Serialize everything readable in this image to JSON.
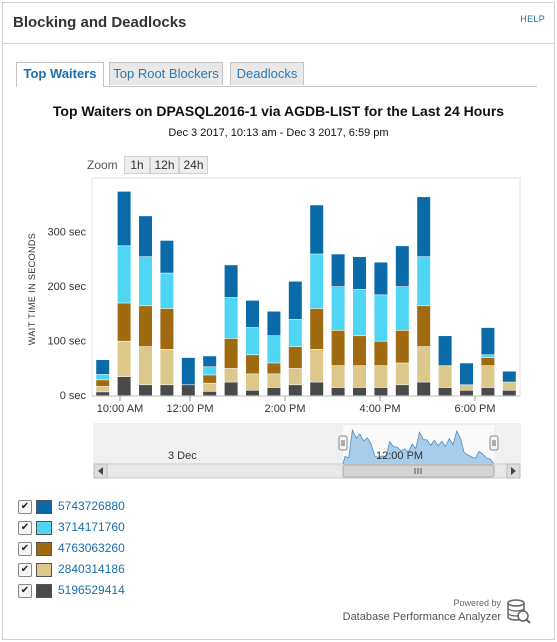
{
  "header": {
    "title": "Blocking and Deadlocks",
    "help": "HELP"
  },
  "tabs": [
    {
      "label": "Top Waiters",
      "active": true
    },
    {
      "label": "Top Root Blockers",
      "active": false
    },
    {
      "label": "Deadlocks",
      "active": false
    }
  ],
  "zoom": {
    "label": "Zoom",
    "buttons": [
      "1h",
      "12h",
      "24h"
    ]
  },
  "colors": [
    "#0b6aa8",
    "#4ed6f4",
    "#a06b10",
    "#dcc88a",
    "#4a4a4a"
  ],
  "chart_data": {
    "type": "bar",
    "stacked": true,
    "title": "Top Waiters on DPASQL2016-1 via AGDB-LIST for the Last 24 Hours",
    "subtitle": "Dec 3 2017, 10:13 am - Dec 3 2017, 6:59 pm",
    "ylabel": "WAIT TIME IN SECONDS",
    "ylim": [
      0,
      400
    ],
    "yticks": [
      {
        "v": 0,
        "label": "0 sec"
      },
      {
        "v": 100,
        "label": "100 sec"
      },
      {
        "v": 200,
        "label": "200 sec"
      },
      {
        "v": 300,
        "label": "300 sec"
      }
    ],
    "xtick_labels": [
      "10:00 AM",
      "12:00 PM",
      "2:00 PM",
      "4:00 PM",
      "6:00 PM"
    ],
    "categories": [
      "10:13 AM",
      "10:40 AM",
      "11:06 AM",
      "11:33 AM",
      "12:00 PM",
      "12:26 PM",
      "12:53 PM",
      "1:20 PM",
      "1:46 PM",
      "2:13 PM",
      "2:40 PM",
      "3:06 PM",
      "3:33 PM",
      "4:00 PM",
      "4:26 PM",
      "4:53 PM",
      "5:20 PM",
      "5:46 PM",
      "6:13 PM",
      "6:40 PM"
    ],
    "series": [
      {
        "name": "5743726880",
        "values": [
          27,
          100,
          75,
          60,
          50,
          20,
          60,
          50,
          45,
          70,
          90,
          60,
          60,
          60,
          75,
          110,
          55,
          40,
          50,
          20
        ]
      },
      {
        "name": "3714171760",
        "values": [
          10,
          105,
          90,
          65,
          0,
          15,
          75,
          50,
          50,
          50,
          100,
          80,
          85,
          85,
          80,
          90,
          0,
          0,
          5,
          0
        ]
      },
      {
        "name": "4763063260",
        "values": [
          12,
          70,
          75,
          75,
          0,
          15,
          55,
          35,
          20,
          40,
          75,
          65,
          55,
          45,
          60,
          75,
          0,
          0,
          15,
          0
        ]
      },
      {
        "name": "2840314186",
        "values": [
          10,
          65,
          70,
          65,
          0,
          15,
          25,
          30,
          25,
          30,
          60,
          40,
          40,
          40,
          40,
          65,
          40,
          10,
          40,
          15
        ]
      },
      {
        "name": "5196529414",
        "values": [
          7,
          35,
          20,
          20,
          20,
          8,
          25,
          10,
          15,
          20,
          25,
          15,
          15,
          15,
          20,
          25,
          15,
          10,
          15,
          10
        ]
      }
    ],
    "navigator": {
      "date_label": "3 Dec",
      "time_label": "12:00 PM"
    },
    "legend": "bottom-left",
    "grid": false
  },
  "footer": {
    "powered_by": "Powered by",
    "product": "Database Performance Analyzer"
  }
}
